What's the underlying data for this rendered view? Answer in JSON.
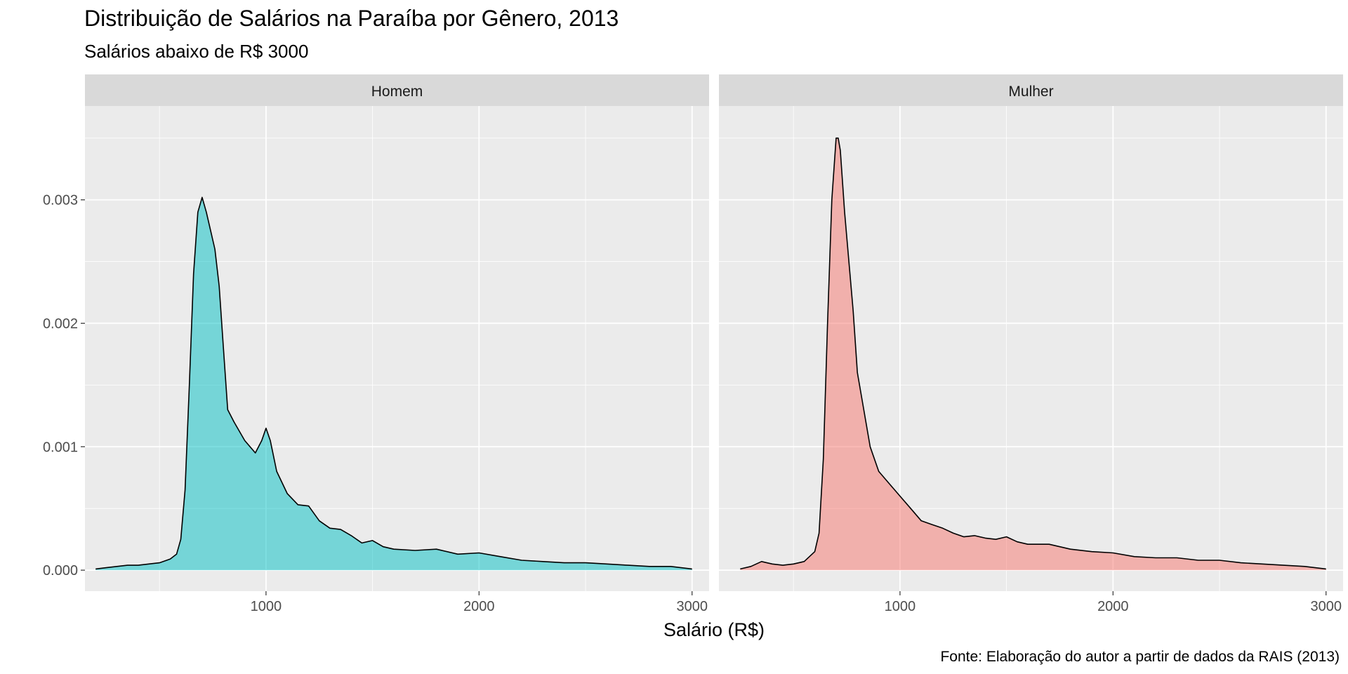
{
  "title": "Distribuição de Salários na Paraíba por Gênero, 2013",
  "subtitle": "Salários abaixo de R$ 3000",
  "caption": "Fonte: Elaboração do autor a partir de dados da RAIS (2013)",
  "colors": {
    "panel_bg": "#ebebeb",
    "strip_bg": "#d9d9d9",
    "grid": "#ffffff",
    "homem_fill": "#00bfc4",
    "mulher_fill": "#f8766d"
  },
  "chart_data": {
    "type": "area",
    "subtype": "density",
    "facet_layout": "1 row x 2 columns",
    "xlabel": "Salário (R$)",
    "ylabel": "",
    "xlim": [
      150,
      3080
    ],
    "ylim": [
      -0.00017,
      0.00376
    ],
    "x_ticks": [
      1000,
      2000,
      3000
    ],
    "x_tick_labels": [
      "1000",
      "2000",
      "3000"
    ],
    "y_ticks": [
      0,
      0.001,
      0.002,
      0.003
    ],
    "y_tick_labels": [
      "0.000",
      "0.001",
      "0.002",
      "0.003"
    ],
    "grid": true,
    "legend": "none",
    "panels": [
      {
        "name": "Homem",
        "fill": "#00bfc4",
        "x": [
          200,
          250,
          300,
          350,
          400,
          450,
          500,
          550,
          580,
          600,
          620,
          640,
          660,
          680,
          700,
          720,
          740,
          760,
          780,
          800,
          820,
          850,
          900,
          950,
          980,
          1000,
          1020,
          1050,
          1100,
          1150,
          1200,
          1250,
          1300,
          1350,
          1400,
          1450,
          1500,
          1550,
          1600,
          1700,
          1800,
          1900,
          2000,
          2100,
          2200,
          2300,
          2400,
          2500,
          2600,
          2700,
          2800,
          2900,
          3000
        ],
        "y": [
          1e-05,
          2e-05,
          3e-05,
          4e-05,
          4e-05,
          5e-05,
          6e-05,
          9e-05,
          0.00013,
          0.00025,
          0.00065,
          0.0015,
          0.0024,
          0.0029,
          0.00302,
          0.0029,
          0.00275,
          0.0026,
          0.0023,
          0.0018,
          0.0013,
          0.0012,
          0.00105,
          0.00095,
          0.00105,
          0.00115,
          0.00105,
          0.0008,
          0.00062,
          0.00053,
          0.00052,
          0.0004,
          0.00034,
          0.00033,
          0.00028,
          0.00022,
          0.00024,
          0.00019,
          0.00017,
          0.00016,
          0.00017,
          0.00013,
          0.00014,
          0.00011,
          8e-05,
          7e-05,
          6e-05,
          6e-05,
          5e-05,
          4e-05,
          3e-05,
          3e-05,
          1e-05
        ]
      },
      {
        "name": "Mulher",
        "fill": "#f8766d",
        "x": [
          250,
          300,
          350,
          400,
          450,
          500,
          550,
          600,
          620,
          640,
          660,
          680,
          700,
          710,
          720,
          740,
          760,
          780,
          800,
          830,
          860,
          900,
          950,
          1000,
          1050,
          1100,
          1150,
          1200,
          1250,
          1300,
          1350,
          1400,
          1450,
          1500,
          1550,
          1600,
          1700,
          1800,
          1900,
          2000,
          2100,
          2200,
          2300,
          2400,
          2500,
          2600,
          2700,
          2800,
          2900,
          3000
        ],
        "y": [
          1e-05,
          3e-05,
          7e-05,
          5e-05,
          4e-05,
          5e-05,
          7e-05,
          0.00015,
          0.0003,
          0.0009,
          0.002,
          0.003,
          0.0035,
          0.0035,
          0.0034,
          0.0029,
          0.0025,
          0.0021,
          0.0016,
          0.0013,
          0.001,
          0.0008,
          0.0007,
          0.0006,
          0.0005,
          0.0004,
          0.00037,
          0.00034,
          0.0003,
          0.00027,
          0.00028,
          0.00026,
          0.00025,
          0.00027,
          0.00023,
          0.00021,
          0.00021,
          0.00017,
          0.00015,
          0.00014,
          0.00011,
          0.0001,
          0.0001,
          8e-05,
          8e-05,
          6e-05,
          5e-05,
          4e-05,
          3e-05,
          1e-05
        ]
      }
    ]
  }
}
